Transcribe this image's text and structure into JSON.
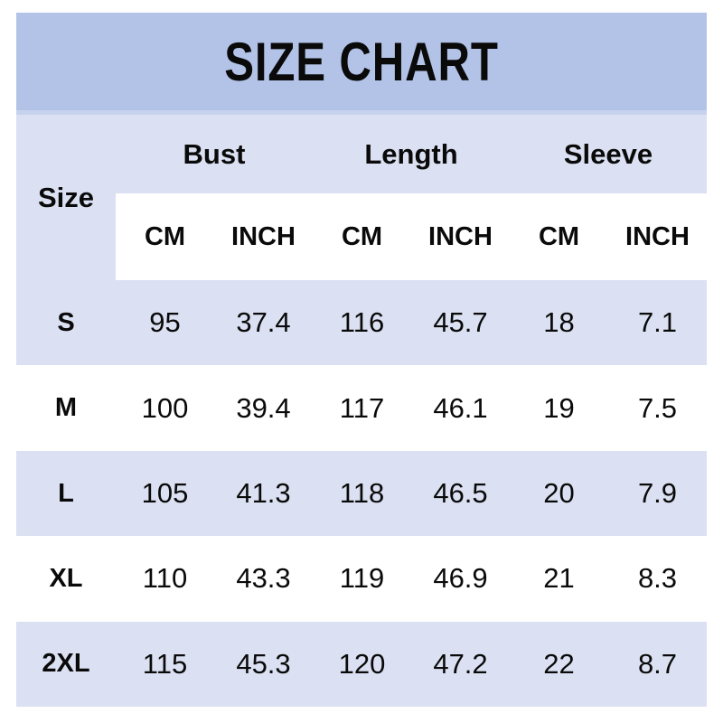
{
  "title": "SIZE CHART",
  "colors": {
    "title_band": "#b3c3e8",
    "title_band_edge": "#c7d2ef",
    "stripe": "#dbe1f2",
    "row_alt": "#ffffff",
    "text": "#0a0a0a"
  },
  "chart_data": {
    "type": "table",
    "title": "SIZE CHART",
    "row_header": "Size",
    "column_groups": [
      "Bust",
      "Length",
      "Sleeve"
    ],
    "unit_labels": [
      "CM",
      "INCH",
      "CM",
      "INCH",
      "CM",
      "INCH"
    ],
    "columns": [
      "Bust CM",
      "Bust INCH",
      "Length CM",
      "Length INCH",
      "Sleeve CM",
      "Sleeve INCH"
    ],
    "sizes": [
      "S",
      "M",
      "L",
      "XL",
      "2XL"
    ],
    "values": [
      [
        "95",
        "37.4",
        "116",
        "45.7",
        "18",
        "7.1"
      ],
      [
        "100",
        "39.4",
        "117",
        "46.1",
        "19",
        "7.5"
      ],
      [
        "105",
        "41.3",
        "118",
        "46.5",
        "20",
        "7.9"
      ],
      [
        "110",
        "43.3",
        "119",
        "46.9",
        "21",
        "8.3"
      ],
      [
        "115",
        "45.3",
        "120",
        "47.2",
        "22",
        "8.7"
      ]
    ]
  }
}
